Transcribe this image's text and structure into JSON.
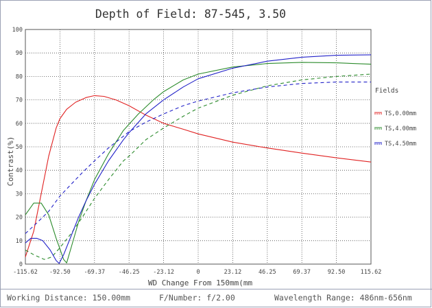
{
  "chart_data": {
    "type": "line",
    "title": "Depth of Field: 87-545, 3.50",
    "xlabel": "WD Change From 150mm(mm",
    "ylabel": "Contrast(%)",
    "xlim": [
      -115.62,
      115.62
    ],
    "ylim": [
      0,
      100
    ],
    "x_ticks": [
      "-115.62",
      "-92.50",
      "-69.37",
      "-46.25",
      "-23.12",
      "0",
      "23.12",
      "46.25",
      "69.37",
      "92.50",
      "115.62"
    ],
    "y_ticks": [
      "0",
      "10",
      "20",
      "30",
      "40",
      "50",
      "60",
      "70",
      "80",
      "90",
      "100"
    ],
    "grid": true,
    "legend_title": "Fields",
    "legend_position": "right",
    "series": [
      {
        "name": "TS,0.00mm",
        "color": "#e02020",
        "dashed_sagittal": true,
        "tangential": [
          [
            -115.62,
            3
          ],
          [
            -110,
            14
          ],
          [
            -105,
            30
          ],
          [
            -100,
            46
          ],
          [
            -95,
            58
          ],
          [
            -92.5,
            62
          ],
          [
            -88,
            66
          ],
          [
            -82,
            69
          ],
          [
            -75,
            71
          ],
          [
            -69.37,
            71.8
          ],
          [
            -63,
            71.5
          ],
          [
            -55,
            70
          ],
          [
            -46.25,
            67.5
          ],
          [
            -35,
            63.5
          ],
          [
            -23.12,
            60
          ],
          [
            -10,
            57.5
          ],
          [
            0,
            55.5
          ],
          [
            23.12,
            52
          ],
          [
            46.25,
            49.5
          ],
          [
            69.37,
            47.3
          ],
          [
            92.5,
            45.3
          ],
          [
            115.62,
            43.5
          ]
        ],
        "sagittal": []
      },
      {
        "name": "TS,4.00mm",
        "color": "#2a8a2a",
        "dashed_sagittal": true,
        "tangential": [
          [
            -115.62,
            21
          ],
          [
            -110,
            26
          ],
          [
            -105,
            26
          ],
          [
            -100,
            21
          ],
          [
            -95,
            11
          ],
          [
            -90,
            2
          ],
          [
            -88,
            0.5
          ],
          [
            -85,
            7
          ],
          [
            -80,
            18
          ],
          [
            -75,
            27
          ],
          [
            -69.37,
            36
          ],
          [
            -60,
            47
          ],
          [
            -50,
            57
          ],
          [
            -40,
            64
          ],
          [
            -30,
            70
          ],
          [
            -23.12,
            73.5
          ],
          [
            -10,
            78.5
          ],
          [
            0,
            81
          ],
          [
            23.12,
            84
          ],
          [
            46.25,
            85.5
          ],
          [
            69.37,
            86
          ],
          [
            92.5,
            85.8
          ],
          [
            115.62,
            85.2
          ]
        ],
        "sagittal": [
          [
            -115.62,
            6
          ],
          [
            -110,
            4
          ],
          [
            -103,
            2
          ],
          [
            -98,
            3
          ],
          [
            -92.5,
            7
          ],
          [
            -85,
            13
          ],
          [
            -77.5,
            20
          ],
          [
            -69.37,
            28
          ],
          [
            -60,
            36
          ],
          [
            -50,
            44
          ],
          [
            -46.25,
            46
          ],
          [
            -35,
            53
          ],
          [
            -23.12,
            58
          ],
          [
            -10,
            63
          ],
          [
            0,
            66.5
          ],
          [
            23.12,
            72
          ],
          [
            46.25,
            76
          ],
          [
            69.37,
            78.5
          ],
          [
            92.5,
            80
          ],
          [
            115.62,
            81
          ]
        ]
      },
      {
        "name": "TS,4.50mm",
        "color": "#2020c8",
        "dashed_sagittal": true,
        "tangential": [
          [
            -115.62,
            9
          ],
          [
            -112,
            11
          ],
          [
            -108,
            11
          ],
          [
            -104,
            10
          ],
          [
            -99,
            6
          ],
          [
            -95,
            1.5
          ],
          [
            -93,
            0.3
          ],
          [
            -90,
            4
          ],
          [
            -85,
            12
          ],
          [
            -80,
            20
          ],
          [
            -75,
            27
          ],
          [
            -69.37,
            34
          ],
          [
            -60,
            44
          ],
          [
            -50,
            53
          ],
          [
            -46.25,
            56
          ],
          [
            -35,
            64
          ],
          [
            -23.12,
            70
          ],
          [
            -10,
            75.5
          ],
          [
            0,
            79
          ],
          [
            23.12,
            83.5
          ],
          [
            46.25,
            86.5
          ],
          [
            69.37,
            88.2
          ],
          [
            92.5,
            89
          ],
          [
            115.62,
            89.2
          ]
        ],
        "sagittal": [
          [
            -115.62,
            13
          ],
          [
            -108,
            17.5
          ],
          [
            -100,
            22.5
          ],
          [
            -92.5,
            29
          ],
          [
            -85,
            34
          ],
          [
            -77.5,
            39
          ],
          [
            -69.37,
            44
          ],
          [
            -60,
            49.5
          ],
          [
            -50,
            54.5
          ],
          [
            -46.25,
            56.5
          ],
          [
            -35,
            60.5
          ],
          [
            -23.12,
            64
          ],
          [
            -10,
            67.5
          ],
          [
            0,
            69.5
          ],
          [
            23.12,
            73
          ],
          [
            46.25,
            75.5
          ],
          [
            69.37,
            77
          ],
          [
            92.5,
            77.6
          ],
          [
            115.62,
            77.6
          ]
        ]
      }
    ]
  },
  "footer": {
    "working_distance": "Working Distance: 150.00mm",
    "f_number": "F/Number: f/2.00",
    "wavelength": "Wavelength Range: 486nm-656nm"
  }
}
